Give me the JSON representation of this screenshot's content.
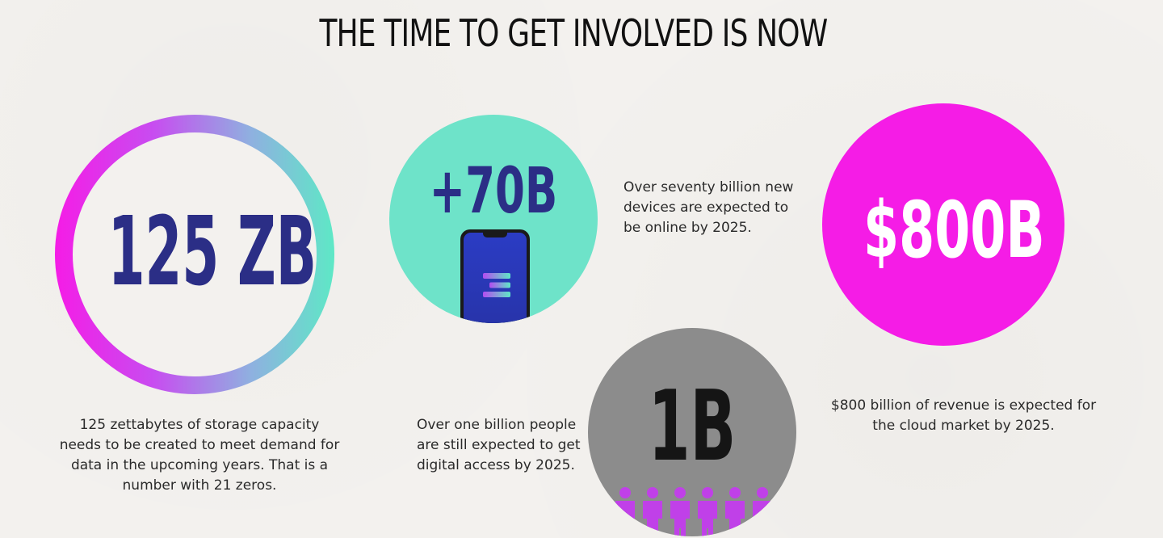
{
  "header": {
    "title": "THE TIME TO GET INVOLVED IS NOW"
  },
  "colors": {
    "navy": "#2b2e86",
    "magenta": "#f51ce6",
    "teal": "#6ee3c9",
    "grey": "#8c8c8c",
    "people_purple": "#c040e8"
  },
  "stats": {
    "storage": {
      "value": "125 ZB",
      "caption": "125 zettabytes of storage capacity needs to be created to meet demand for data in the upcoming years. That is a number with 21 zeros."
    },
    "devices": {
      "value": "+70B",
      "icon": "smartphone-icon",
      "caption": "Over seventy billion new devices are expected to be online by 2025."
    },
    "revenue": {
      "value": "$800B",
      "caption": "$800 billion of revenue is expected for the cloud market by 2025."
    },
    "people": {
      "value": "1B",
      "icon": "people-icon",
      "caption": "Over one billion people are still expected to get digital access by 2025."
    }
  }
}
